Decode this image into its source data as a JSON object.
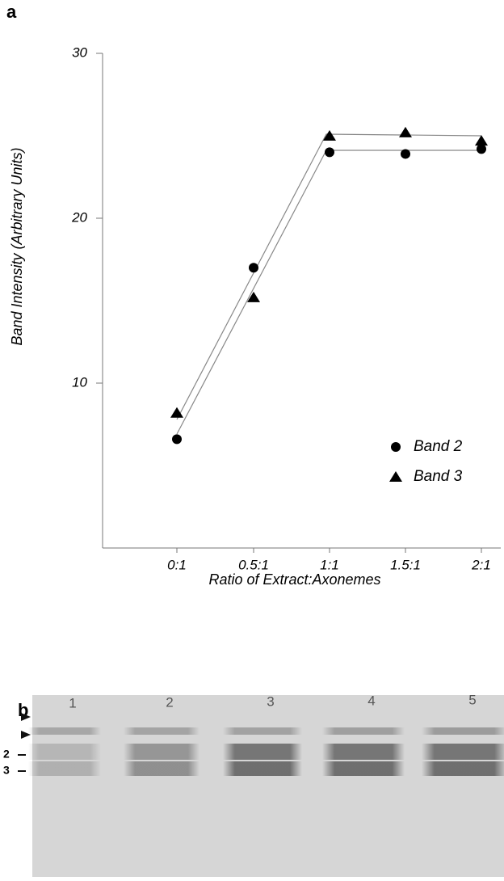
{
  "chart_data": {
    "type": "line",
    "panel_label": "a",
    "x_label": "Ratio of Extract:Axonemes",
    "y_label": "Band Intensity (Arbitrary Units)",
    "categories": [
      "0:1",
      "0.5:1",
      "1:1",
      "1.5:1",
      "2:1"
    ],
    "series": [
      {
        "name": "Band 2",
        "color": "#000000",
        "marker": "circle",
        "values": [
          6.6,
          17.0,
          24.0,
          23.9,
          24.2
        ]
      },
      {
        "name": "Band 3",
        "color": "#000000",
        "marker": "triangle",
        "values": [
          8.2,
          15.2,
          25.0,
          25.2,
          24.7
        ]
      }
    ],
    "ylim": [
      0,
      30
    ],
    "yticks": [
      10,
      20,
      30
    ]
  },
  "gel": {
    "panel_label": "b",
    "lanes": [
      "1",
      "2",
      "3",
      "4",
      "5"
    ],
    "band_labels": [
      "2",
      "3"
    ]
  }
}
